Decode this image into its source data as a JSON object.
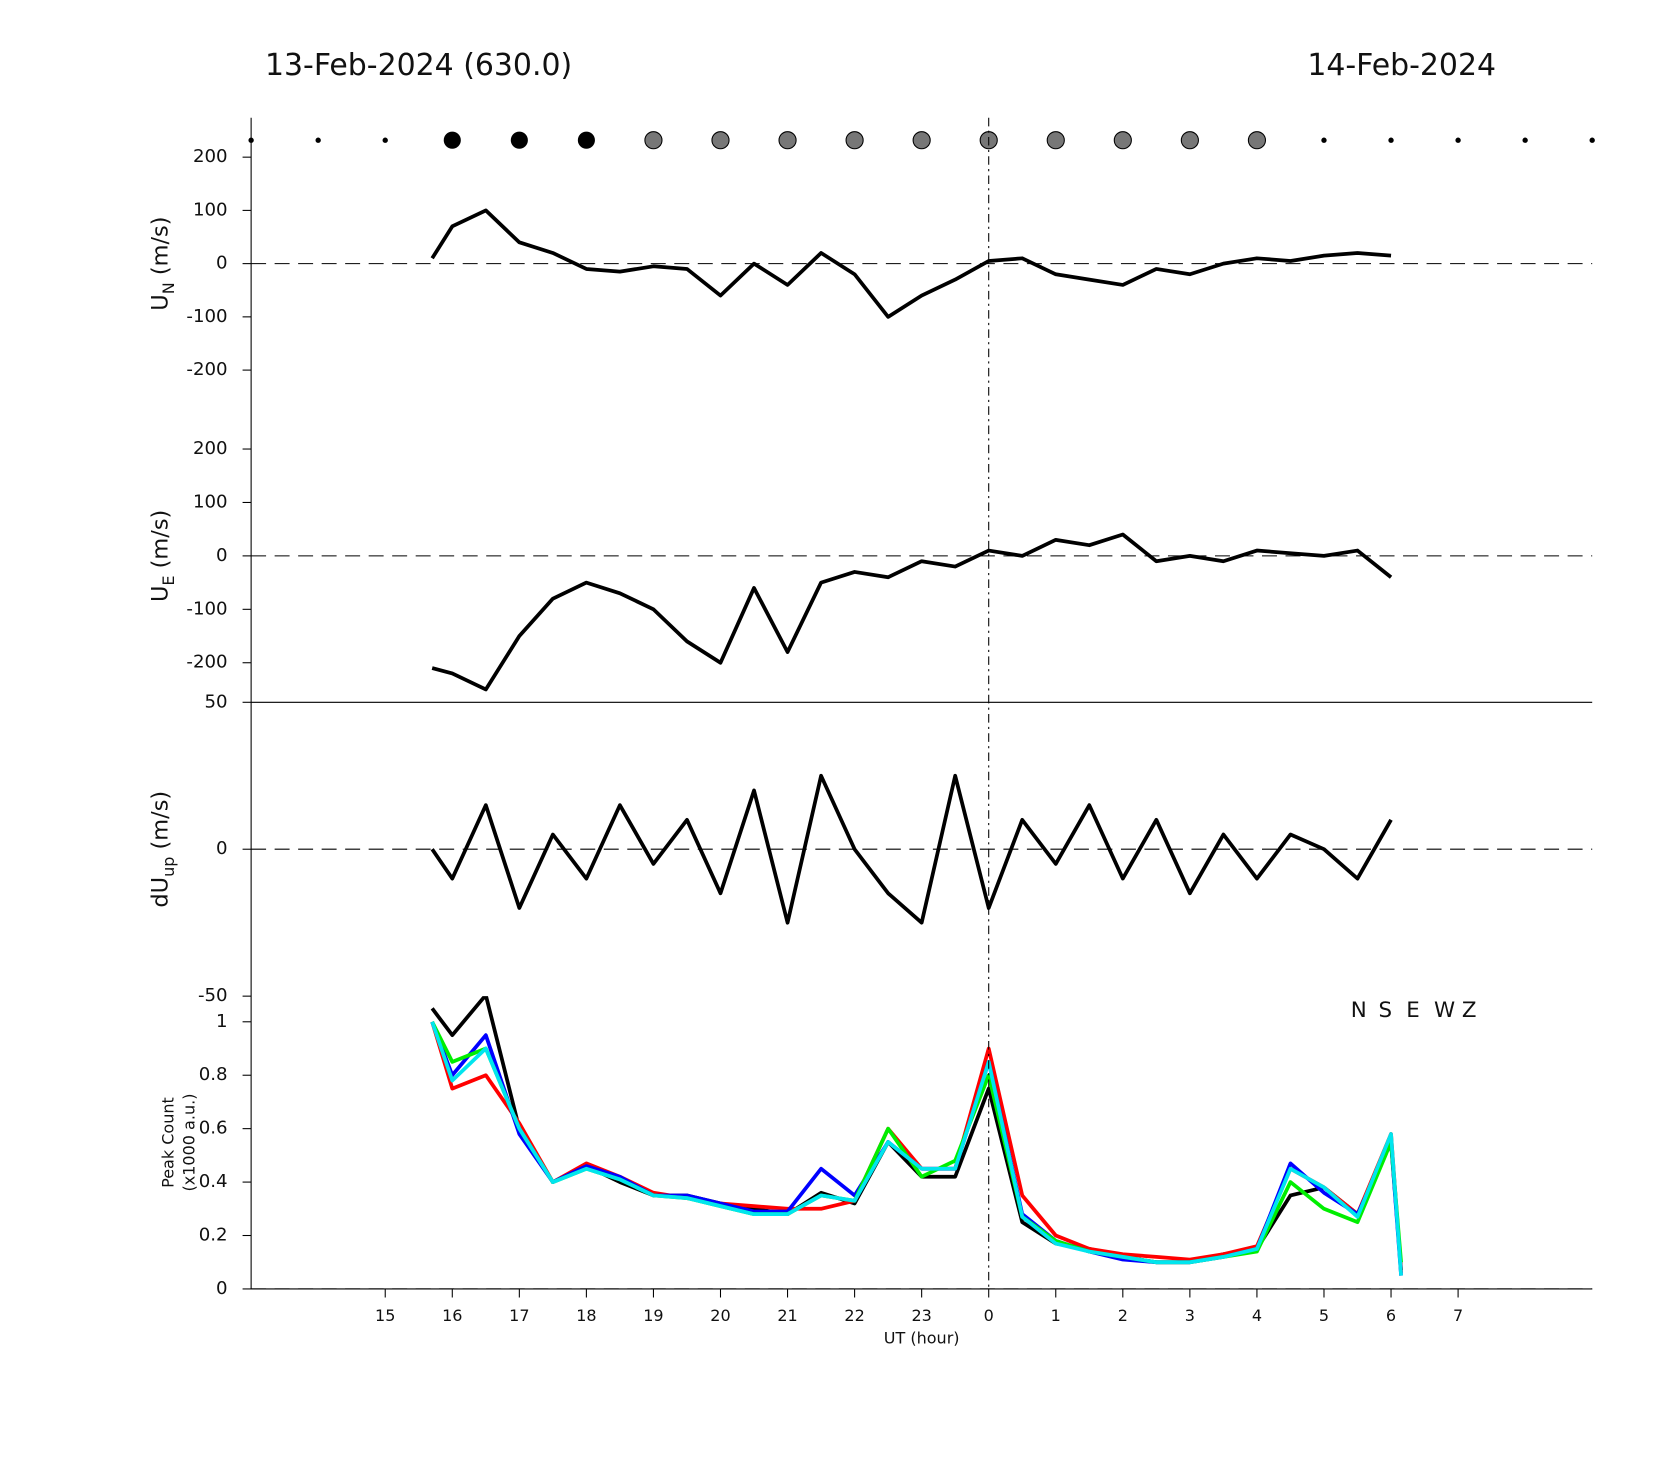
{
  "header": {
    "left_title": "13-Feb-2024 (630.0)",
    "right_title": "14-Feb-2024"
  },
  "chart_data": [
    {
      "type": "line",
      "ylabel": {
        "main": "U",
        "sub": "N",
        "unit": " (m/s)"
      },
      "xlim": [
        13,
        33
      ],
      "ylim": [
        -274,
        274
      ],
      "yticks": [
        -200,
        -100,
        0,
        100,
        200
      ],
      "x": [
        15.7,
        16.0,
        16.5,
        17.0,
        17.5,
        18.0,
        18.5,
        19.0,
        19.5,
        20.0,
        20.5,
        21.0,
        21.5,
        22.0,
        22.5,
        23.0,
        23.5,
        24.0,
        24.5,
        25.0,
        25.5,
        26.0,
        26.5,
        27.0,
        27.5,
        28.0,
        28.5,
        29.0,
        29.5,
        30.0
      ],
      "series": [
        {
          "color": "#000000",
          "values": [
            10,
            70,
            100,
            40,
            20,
            -10,
            -15,
            -5,
            -10,
            -60,
            0,
            -40,
            20,
            -20,
            -100,
            -60,
            -30,
            5,
            10,
            -20,
            -30,
            -40,
            -10,
            -20,
            0,
            10,
            5,
            15,
            20,
            15
          ]
        }
      ]
    },
    {
      "type": "line",
      "ylabel": {
        "main": "U",
        "sub": "E",
        "unit": " (m/s)"
      },
      "xlim": [
        13,
        33
      ],
      "ylim": [
        -274,
        274
      ],
      "yticks": [
        -200,
        -100,
        0,
        100,
        200
      ],
      "x": [
        15.7,
        16.0,
        16.5,
        17.0,
        17.5,
        18.0,
        18.5,
        19.0,
        19.5,
        20.0,
        20.5,
        21.0,
        21.5,
        22.0,
        22.5,
        23.0,
        23.5,
        24.0,
        24.5,
        25.0,
        25.5,
        26.0,
        26.5,
        27.0,
        27.5,
        28.0,
        28.5,
        29.0,
        29.5,
        30.0
      ],
      "series": [
        {
          "color": "#000000",
          "values": [
            -210,
            -220,
            -250,
            -150,
            -80,
            -50,
            -70,
            -100,
            -160,
            -200,
            -60,
            -180,
            -50,
            -30,
            -40,
            -10,
            -20,
            10,
            0,
            30,
            20,
            40,
            -10,
            0,
            -10,
            10,
            5,
            0,
            10,
            -40
          ]
        }
      ]
    },
    {
      "type": "line",
      "ylabel": {
        "main": "dU",
        "sub": "up",
        "unit": " (m/s)"
      },
      "xlim": [
        13,
        33
      ],
      "ylim": [
        -50,
        50
      ],
      "yticks": [
        -50,
        0,
        50
      ],
      "x": [
        15.7,
        16.0,
        16.5,
        17.0,
        17.5,
        18.0,
        18.5,
        19.0,
        19.5,
        20.0,
        20.5,
        21.0,
        21.5,
        22.0,
        22.5,
        23.0,
        23.5,
        24.0,
        24.5,
        25.0,
        25.5,
        26.0,
        26.5,
        27.0,
        27.5,
        28.0,
        28.5,
        29.0,
        29.5,
        30.0
      ],
      "series": [
        {
          "color": "#000000",
          "values": [
            0,
            -10,
            15,
            -20,
            5,
            -10,
            15,
            -5,
            10,
            -15,
            20,
            -25,
            25,
            0,
            -15,
            -25,
            25,
            -20,
            10,
            -5,
            15,
            -10,
            10,
            -15,
            5,
            -10,
            5,
            0,
            -10,
            10
          ]
        }
      ]
    },
    {
      "type": "line",
      "ylabel": {
        "line1": "Peak Count",
        "line2": "(x1000 a.u.)"
      },
      "xlabel": "UT (hour)",
      "xlim": [
        13,
        33
      ],
      "ylim": [
        0,
        1.096
      ],
      "yticks": [
        0,
        0.2,
        0.4,
        0.6,
        0.8,
        1
      ],
      "xticks": [
        15,
        16,
        17,
        18,
        19,
        20,
        21,
        22,
        23,
        {
          "value": 24,
          "label": "0"
        },
        {
          "value": 25,
          "label": "1"
        },
        {
          "value": 26,
          "label": "2"
        },
        {
          "value": 27,
          "label": "3"
        },
        {
          "value": 28,
          "label": "4"
        },
        {
          "value": 29,
          "label": "5"
        },
        {
          "value": 30,
          "label": "6"
        },
        {
          "value": 31,
          "label": "7"
        }
      ],
      "x": [
        15.7,
        16.0,
        16.5,
        17.0,
        17.5,
        18.0,
        18.5,
        19.0,
        19.5,
        20.0,
        20.5,
        21.0,
        21.5,
        22.0,
        22.5,
        23.0,
        23.5,
        24.0,
        24.5,
        25.0,
        25.5,
        26.0,
        26.5,
        27.0,
        27.5,
        28.0,
        28.5,
        29.0,
        29.5,
        30.0,
        30.15
      ],
      "series": [
        {
          "name": "N",
          "color": "#000000",
          "values": [
            1.05,
            0.95,
            1.1,
            0.6,
            0.4,
            0.46,
            0.4,
            0.35,
            0.35,
            0.32,
            0.3,
            0.28,
            0.36,
            0.32,
            0.55,
            0.42,
            0.42,
            0.75,
            0.25,
            0.17,
            0.15,
            0.12,
            0.1,
            0.1,
            0.13,
            0.15,
            0.35,
            0.38,
            0.28,
            0.55,
            0.07
          ]
        },
        {
          "name": "S",
          "color": "#ff0000",
          "values": [
            1.0,
            0.75,
            0.8,
            0.62,
            0.4,
            0.47,
            0.42,
            0.36,
            0.34,
            0.32,
            0.31,
            0.3,
            0.3,
            0.33,
            0.6,
            0.45,
            0.45,
            0.9,
            0.35,
            0.2,
            0.15,
            0.13,
            0.12,
            0.11,
            0.13,
            0.16,
            0.45,
            0.38,
            0.28,
            0.58,
            0.06
          ]
        },
        {
          "name": "E",
          "color": "#0000ff",
          "values": [
            1.0,
            0.8,
            0.95,
            0.58,
            0.4,
            0.46,
            0.42,
            0.35,
            0.35,
            0.32,
            0.29,
            0.29,
            0.45,
            0.35,
            0.55,
            0.45,
            0.45,
            0.85,
            0.28,
            0.18,
            0.14,
            0.11,
            0.1,
            0.1,
            0.12,
            0.15,
            0.47,
            0.36,
            0.28,
            0.55,
            0.05
          ]
        },
        {
          "name": "W",
          "color": "#00ee00",
          "values": [
            1.0,
            0.85,
            0.9,
            0.6,
            0.4,
            0.45,
            0.41,
            0.35,
            0.34,
            0.31,
            0.28,
            0.28,
            0.35,
            0.33,
            0.6,
            0.42,
            0.48,
            0.8,
            0.27,
            0.18,
            0.14,
            0.12,
            0.1,
            0.1,
            0.12,
            0.14,
            0.4,
            0.3,
            0.25,
            0.55,
            0.1
          ]
        },
        {
          "name": "Z",
          "color": "#00e5ee",
          "values": [
            1.0,
            0.78,
            0.9,
            0.6,
            0.4,
            0.45,
            0.41,
            0.35,
            0.34,
            0.31,
            0.28,
            0.28,
            0.35,
            0.33,
            0.55,
            0.45,
            0.45,
            0.85,
            0.27,
            0.17,
            0.14,
            0.12,
            0.1,
            0.1,
            0.12,
            0.15,
            0.45,
            0.38,
            0.27,
            0.58,
            0.05
          ]
        }
      ]
    }
  ]
}
